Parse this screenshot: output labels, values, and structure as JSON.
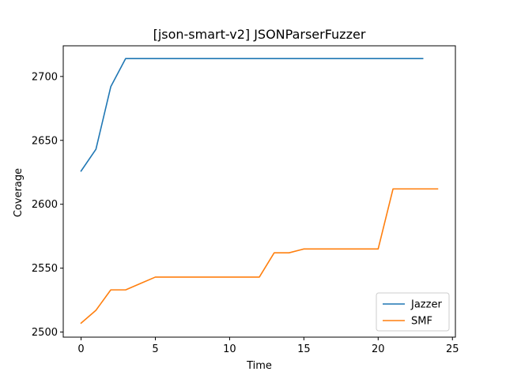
{
  "chart_data": {
    "type": "line",
    "title": "[json-smart-v2] JSONParserFuzzer",
    "xlabel": "Time",
    "ylabel": "Coverage",
    "xlim": [
      -1.2,
      25.2
    ],
    "ylim": [
      2496,
      2724
    ],
    "xticks": [
      0,
      5,
      10,
      15,
      20,
      25
    ],
    "yticks": [
      2500,
      2550,
      2600,
      2650,
      2700
    ],
    "grid": false,
    "legend_position": "lower-right",
    "series": [
      {
        "name": "Jazzer",
        "color": "#1f77b4",
        "x": [
          0,
          1,
          2,
          3,
          4,
          5,
          6,
          7,
          8,
          9,
          10,
          11,
          12,
          13,
          14,
          15,
          16,
          17,
          18,
          19,
          20,
          21,
          22,
          23
        ],
        "values": [
          2626,
          2643,
          2692,
          2714,
          2714,
          2714,
          2714,
          2714,
          2714,
          2714,
          2714,
          2714,
          2714,
          2714,
          2714,
          2714,
          2714,
          2714,
          2714,
          2714,
          2714,
          2714,
          2714,
          2714
        ]
      },
      {
        "name": "SMF",
        "color": "#ff7f0e",
        "x": [
          0,
          1,
          2,
          3,
          4,
          5,
          6,
          7,
          8,
          9,
          10,
          11,
          12,
          13,
          14,
          15,
          16,
          17,
          18,
          19,
          20,
          21,
          22,
          23,
          24
        ],
        "values": [
          2507,
          2517,
          2533,
          2533,
          2538,
          2543,
          2543,
          2543,
          2543,
          2543,
          2543,
          2543,
          2543,
          2562,
          2562,
          2565,
          2565,
          2565,
          2565,
          2565,
          2565,
          2612,
          2612,
          2612,
          2612
        ]
      }
    ]
  }
}
